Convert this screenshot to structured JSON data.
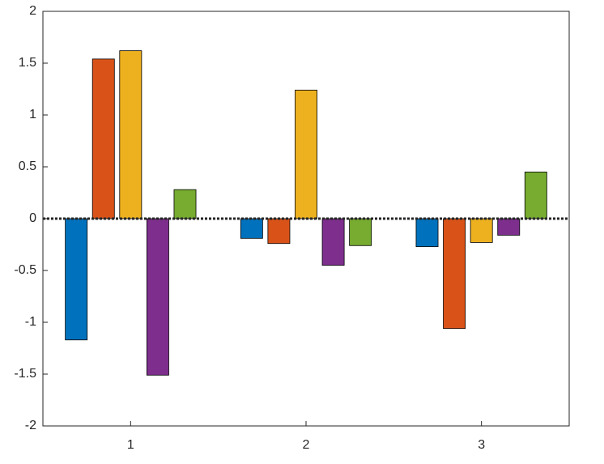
{
  "chart_data": {
    "type": "bar",
    "x": [
      1,
      2,
      3
    ],
    "xlim": [
      0.5,
      3.5
    ],
    "xticks": [
      1,
      2,
      3
    ],
    "ylim": [
      -2,
      2
    ],
    "yticks": [
      -2,
      -1.5,
      -1,
      -0.5,
      0,
      0.5,
      1,
      1.5,
      2
    ],
    "series": [
      {
        "color": "#0072bd",
        "values": [
          -1.17,
          -0.19,
          -0.27
        ]
      },
      {
        "color": "#d95319",
        "values": [
          1.54,
          -0.24,
          -1.06
        ]
      },
      {
        "color": "#edb120",
        "values": [
          1.62,
          1.24,
          -0.23
        ]
      },
      {
        "color": "#7e2f8e",
        "values": [
          -1.51,
          -0.45,
          -0.16
        ]
      },
      {
        "color": "#77ac30",
        "values": [
          0.28,
          -0.26,
          0.45
        ]
      }
    ]
  }
}
